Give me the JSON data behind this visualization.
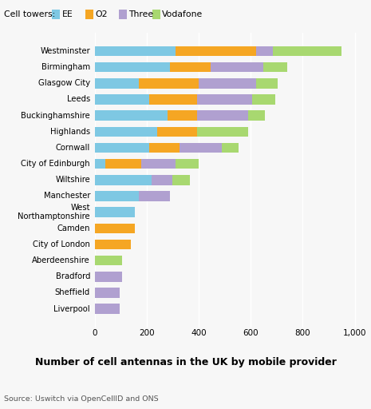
{
  "title": "Number of cell antennas in the UK by mobile provider",
  "source": "Source: Uswitch via OpenCellID and ONS",
  "legend_title": "Cell towers:",
  "categories": [
    "Westminster",
    "Birmingham",
    "Glasgow City",
    "Leeds",
    "Buckinghamshire",
    "Highlands",
    "Cornwall",
    "City of Edinburgh",
    "Wiltshire",
    "Manchester",
    "West\nNorthamptonshire",
    "Camden",
    "City of London",
    "Aberdeenshire",
    "Bradford",
    "Sheffield",
    "Liverpool"
  ],
  "providers": [
    "EE",
    "O2",
    "Three",
    "Vodafone"
  ],
  "colors": {
    "EE": "#7ec8e3",
    "O2": "#f5a623",
    "Three": "#b0a0d0",
    "Vodafone": "#a8d870"
  },
  "data": {
    "EE": [
      310,
      290,
      170,
      210,
      280,
      240,
      210,
      40,
      220,
      170,
      155,
      0,
      0,
      0,
      0,
      0,
      0
    ],
    "O2": [
      310,
      155,
      230,
      185,
      115,
      155,
      115,
      140,
      0,
      0,
      0,
      155,
      140,
      0,
      0,
      0,
      0
    ],
    "Three": [
      65,
      205,
      220,
      210,
      195,
      0,
      165,
      130,
      80,
      120,
      0,
      0,
      0,
      0,
      105,
      95,
      95
    ],
    "Vodafone": [
      265,
      90,
      85,
      90,
      65,
      195,
      65,
      90,
      65,
      0,
      0,
      0,
      0,
      105,
      0,
      0,
      0
    ]
  },
  "xlim": [
    0,
    1020
  ],
  "xticks": [
    0,
    200,
    400,
    600,
    800,
    1000
  ],
  "xticklabels": [
    "0",
    "200",
    "400",
    "600",
    "800",
    "1,000"
  ],
  "background_color": "#f7f7f7"
}
